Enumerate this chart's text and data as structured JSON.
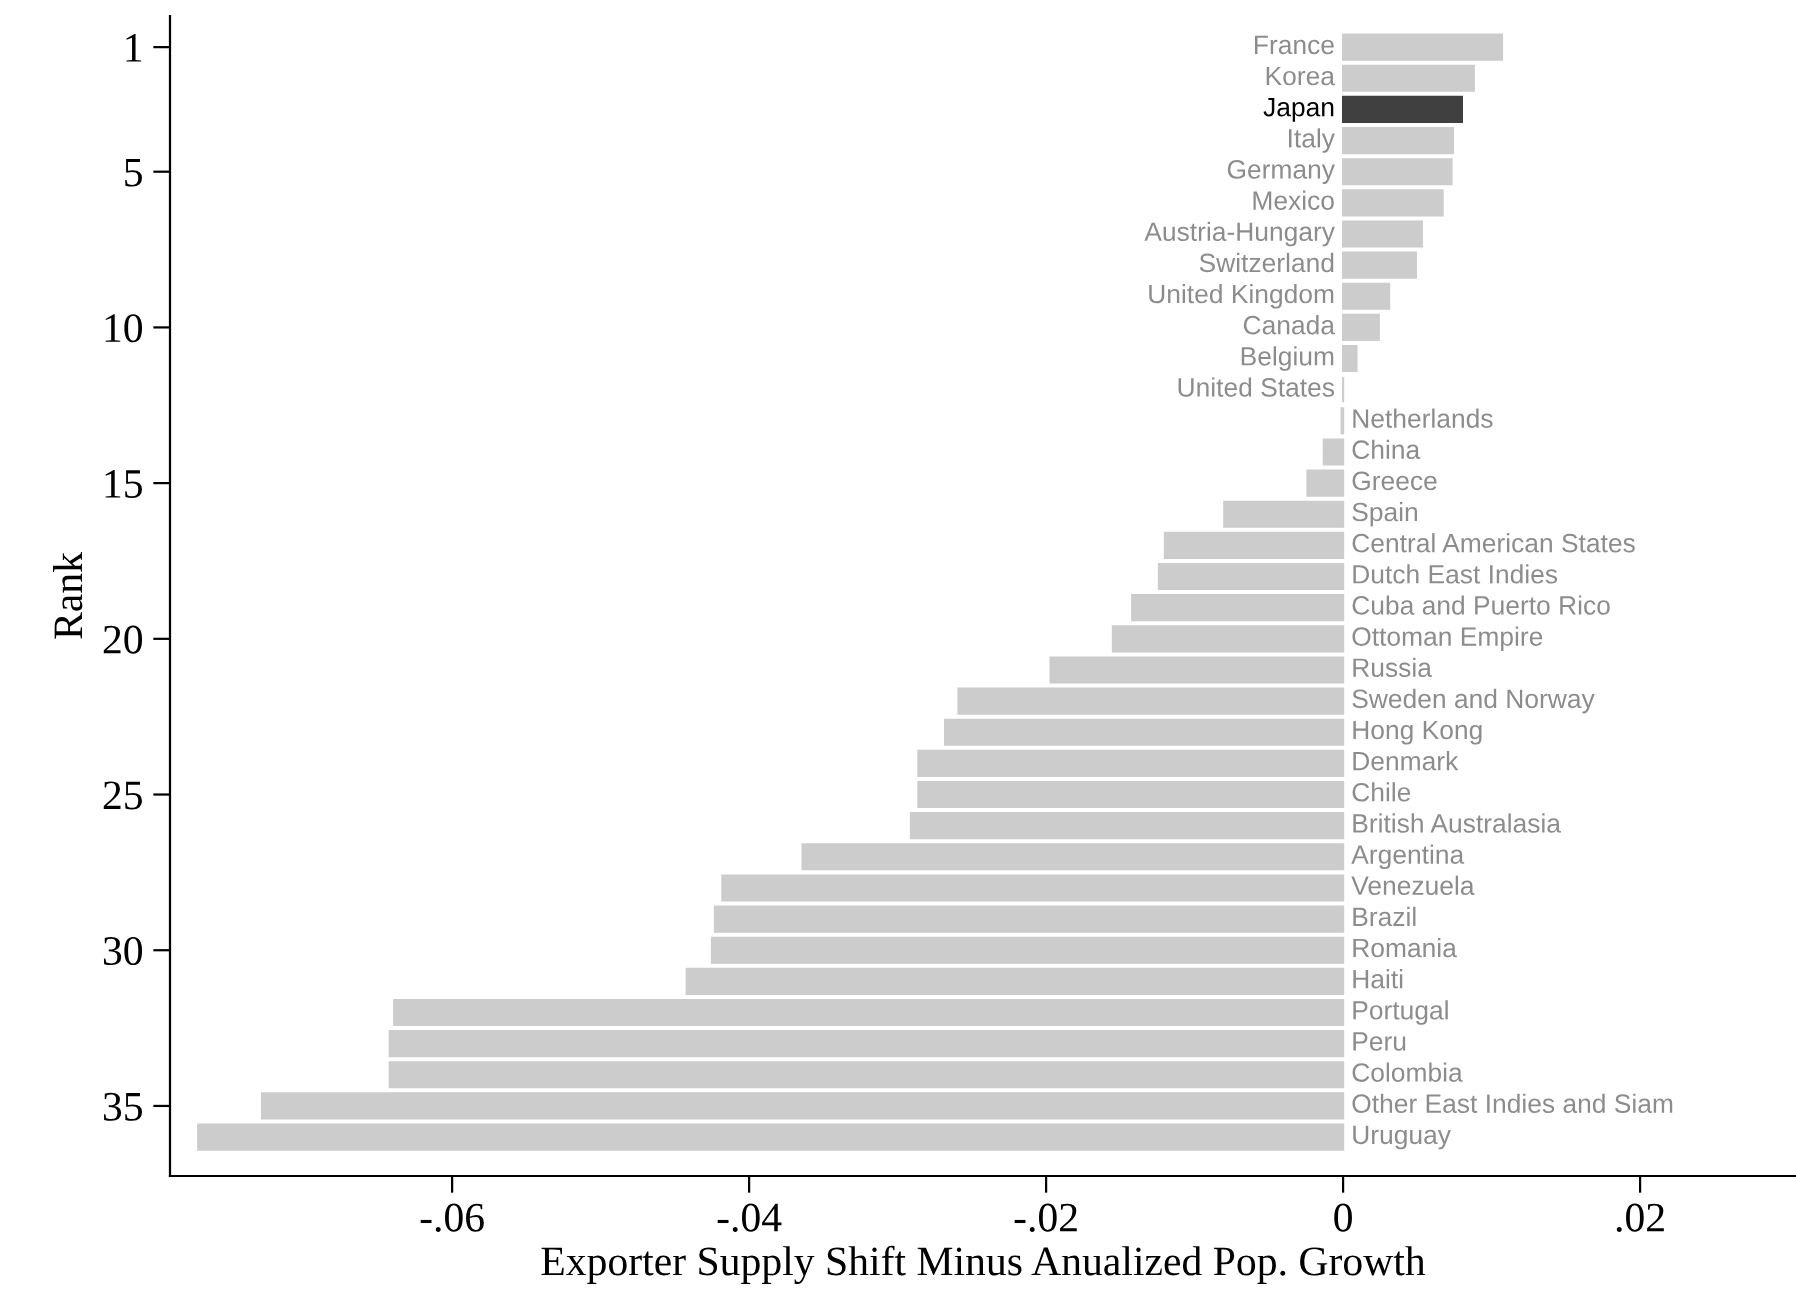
{
  "chart_data": {
    "type": "bar",
    "orientation": "horizontal",
    "xlabel": "Exporter Supply Shift Minus Anualized Pop. Growth",
    "ylabel": "Rank",
    "x": [
      1,
      2,
      3,
      4,
      5,
      6,
      7,
      8,
      9,
      10,
      11,
      12,
      13,
      14,
      15,
      16,
      17,
      18,
      19,
      20,
      21,
      22,
      23,
      24,
      25,
      26,
      27,
      28,
      29,
      30,
      31,
      32,
      33,
      34,
      35,
      36
    ],
    "values": [
      0.0107,
      0.0088,
      0.008,
      0.0074,
      0.0073,
      0.0067,
      0.0053,
      0.0049,
      0.0031,
      0.0024,
      0.0009,
      0.0,
      -0.0001,
      -0.0013,
      -0.0024,
      -0.008,
      -0.012,
      -0.0124,
      -0.0142,
      -0.0155,
      -0.0197,
      -0.0259,
      -0.0268,
      -0.0286,
      -0.0286,
      -0.0291,
      -0.0364,
      -0.0418,
      -0.0423,
      -0.0425,
      -0.0442,
      -0.0639,
      -0.0642,
      -0.0642,
      -0.0728,
      -0.0771
    ],
    "colors": [
      "#cccccc",
      "#cccccc",
      "#404040",
      "#cccccc",
      "#cccccc",
      "#cccccc",
      "#cccccc",
      "#cccccc",
      "#cccccc",
      "#cccccc",
      "#cccccc",
      "#cccccc",
      "#cccccc",
      "#cccccc",
      "#cccccc",
      "#cccccc",
      "#cccccc",
      "#cccccc",
      "#cccccc",
      "#cccccc",
      "#cccccc",
      "#cccccc",
      "#cccccc",
      "#cccccc",
      "#cccccc",
      "#cccccc",
      "#cccccc",
      "#cccccc",
      "#cccccc",
      "#cccccc",
      "#cccccc",
      "#cccccc",
      "#cccccc",
      "#cccccc",
      "#cccccc",
      "#cccccc"
    ],
    "value_labels": [
      "France",
      "Korea",
      "Japan",
      "Italy",
      "Germany",
      "Mexico",
      "Austria-Hungary",
      "Switzerland",
      "United Kingdom",
      "Canada",
      "Belgium",
      "United States",
      "Netherlands",
      "China",
      "Greece",
      "Spain",
      "Central American States",
      "Dutch East Indies",
      "Cuba and Puerto Rico",
      "Ottoman Empire",
      "Russia",
      "Sweden and Norway",
      "Hong Kong",
      "Denmark",
      "Chile",
      "British Australasia",
      "Argentina",
      "Venezuela",
      "Brazil",
      "Romania",
      "Haiti",
      "Portugal",
      "Peru",
      "Colombia",
      "Other East Indies and Siam",
      "Uruguay"
    ],
    "xlim": [
      -0.079,
      0.0305
    ],
    "ylim": [
      37.25,
      0
    ],
    "xticks": [
      {
        "value": -0.06,
        "label": "-.06"
      },
      {
        "value": -0.04,
        "label": "-.04"
      },
      {
        "value": -0.02,
        "label": "-.02"
      },
      0,
      {
        "value": 0.02,
        "label": ".02"
      }
    ],
    "yticks": [
      1,
      5,
      10,
      15,
      20,
      25,
      30,
      35
    ],
    "grid": false,
    "legend": false
  }
}
